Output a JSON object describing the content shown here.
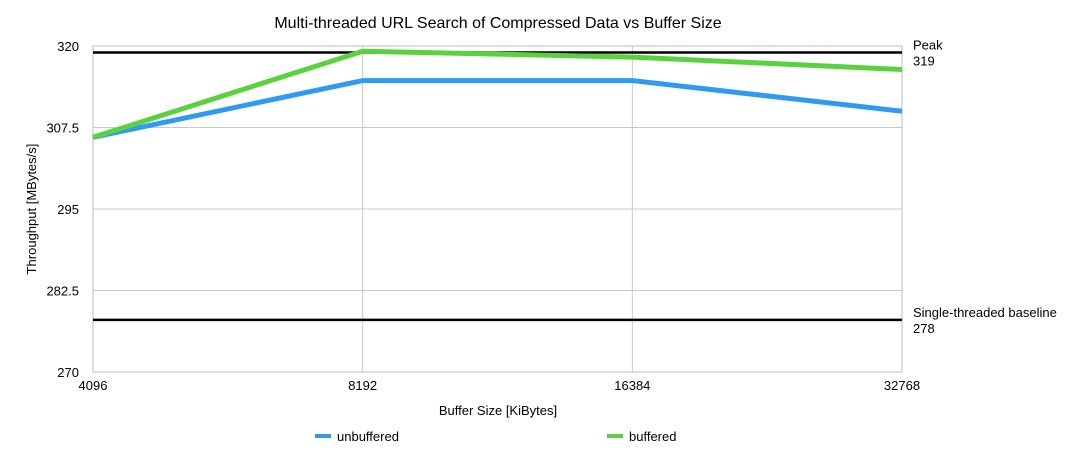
{
  "chart_data": {
    "type": "line",
    "title": "Multi-threaded URL Search of Compressed Data vs Buffer Size",
    "xlabel": "Buffer Size [KiBytes]",
    "ylabel": "Throughput [MBytes/s]",
    "categories": [
      "4096",
      "8192",
      "16384",
      "32768"
    ],
    "ylim": [
      270,
      320
    ],
    "yticks": [
      "270",
      "282.5",
      "295",
      "307.5",
      "320"
    ],
    "grid": true,
    "legend_position": "bottom",
    "series": [
      {
        "name": "unbuffered",
        "color": "#2f9af0",
        "values": [
          306,
          314.7,
          314.7,
          310
        ]
      },
      {
        "name": "buffered",
        "color": "#5ad23f",
        "values": [
          306,
          319.2,
          318.3,
          316.4
        ]
      }
    ],
    "reference_lines": [
      {
        "name": "Peak",
        "value": 319,
        "value_label": "319",
        "color": "#000000"
      },
      {
        "name": "Single-threaded baseline",
        "value": 278,
        "value_label": "278",
        "color": "#000000"
      }
    ]
  }
}
